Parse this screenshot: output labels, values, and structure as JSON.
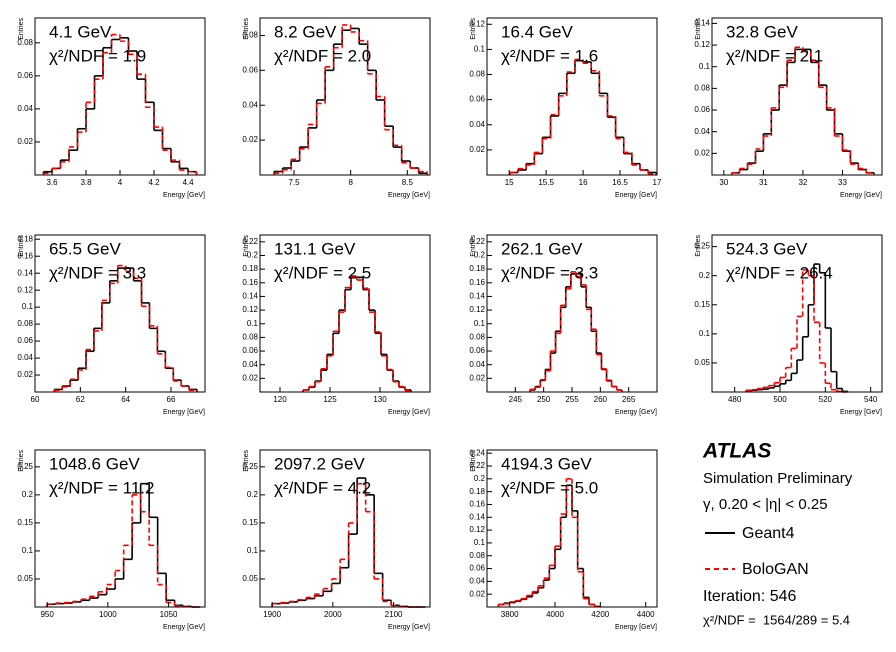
{
  "chart_data": [
    {
      "type": "histogram",
      "title": "4.1 GeV",
      "annotation": "χ²/NDF = 1.9",
      "xlabel": "Energy [GeV]",
      "ylabel": "Entries",
      "bins": [
        3.55,
        3.6,
        3.65,
        3.7,
        3.75,
        3.8,
        3.85,
        3.9,
        3.95,
        4,
        4.05,
        4.1,
        4.15,
        4.2,
        4.25,
        4.3,
        4.35,
        4.4,
        4.45
      ],
      "series": [
        {
          "name": "Geant4",
          "color": "#000000",
          "dashed": false,
          "values": [
            0.002,
            0.004,
            0.009,
            0.015,
            0.028,
            0.04,
            0.06,
            0.077,
            0.082,
            0.083,
            0.075,
            0.058,
            0.044,
            0.027,
            0.016,
            0.008,
            0.004,
            0.002
          ]
        },
        {
          "name": "BoloGAN",
          "color": "#ff0000",
          "dashed": true,
          "values": [
            0.001,
            0.004,
            0.008,
            0.017,
            0.026,
            0.044,
            0.058,
            0.074,
            0.085,
            0.081,
            0.073,
            0.061,
            0.041,
            0.029,
            0.015,
            0.009,
            0.003,
            0.002
          ]
        }
      ],
      "xlim": [
        3.5,
        4.5
      ],
      "xticks": [
        3.6,
        3.8,
        4,
        4.2,
        4.4
      ],
      "ylim": [
        0,
        0.095
      ],
      "yticks": [
        0.02,
        0.04,
        0.06,
        0.08
      ]
    },
    {
      "type": "histogram",
      "title": "8.2 GeV",
      "annotation": "χ²/NDF = 2.0",
      "xlabel": "Energy [GeV]",
      "ylabel": "Entries",
      "bins": [
        7.325,
        7.4,
        7.475,
        7.55,
        7.625,
        7.7,
        7.775,
        7.85,
        7.925,
        8,
        8.075,
        8.15,
        8.225,
        8.3,
        8.375,
        8.45,
        8.525,
        8.6,
        8.675
      ],
      "series": [
        {
          "color": "#000000",
          "dashed": false,
          "values": [
            0.002,
            0.004,
            0.008,
            0.016,
            0.027,
            0.043,
            0.06,
            0.075,
            0.083,
            0.084,
            0.075,
            0.06,
            0.043,
            0.028,
            0.016,
            0.008,
            0.004,
            0.001
          ]
        },
        {
          "color": "#ff0000",
          "dashed": true,
          "values": [
            0.001,
            0.003,
            0.009,
            0.015,
            0.029,
            0.041,
            0.062,
            0.073,
            0.086,
            0.082,
            0.077,
            0.058,
            0.045,
            0.026,
            0.017,
            0.007,
            0.004,
            0.002
          ]
        }
      ],
      "xlim": [
        7.2,
        8.7
      ],
      "xticks": [
        7.5,
        8,
        8.5
      ],
      "ylim": [
        0,
        0.09
      ],
      "yticks": [
        0.02,
        0.04,
        0.06,
        0.08
      ]
    },
    {
      "type": "histogram",
      "title": "16.4 GeV",
      "annotation": "χ²/NDF = 1.6",
      "xlabel": "Energy [GeV]",
      "ylabel": "Entries",
      "bins": [
        15.01,
        15.12,
        15.23,
        15.34,
        15.45,
        15.56,
        15.67,
        15.78,
        15.89,
        16,
        16.11,
        16.22,
        16.33,
        16.44,
        16.55,
        16.66,
        16.77,
        16.88,
        16.99
      ],
      "series": [
        {
          "color": "#000000",
          "dashed": false,
          "values": [
            0.002,
            0.004,
            0.009,
            0.017,
            0.03,
            0.047,
            0.065,
            0.081,
            0.091,
            0.09,
            0.081,
            0.065,
            0.046,
            0.03,
            0.017,
            0.009,
            0.004,
            0.002
          ]
        },
        {
          "color": "#ff0000",
          "dashed": true,
          "values": [
            0.002,
            0.005,
            0.008,
            0.018,
            0.029,
            0.048,
            0.063,
            0.082,
            0.092,
            0.089,
            0.083,
            0.063,
            0.047,
            0.029,
            0.018,
            0.008,
            0.004,
            0.001
          ]
        }
      ],
      "xlim": [
        14.7,
        17
      ],
      "xticks": [
        15,
        15.5,
        16,
        16.5,
        17
      ],
      "ylim": [
        0,
        0.125
      ],
      "yticks": [
        0.02,
        0.04,
        0.06,
        0.08,
        0.1,
        0.12
      ]
    },
    {
      "type": "histogram",
      "title": "32.8 GeV",
      "annotation": "χ²/NDF = 2.1",
      "xlabel": "Energy [GeV]",
      "ylabel": "Entries",
      "bins": [
        30.2,
        30.4,
        30.6,
        30.8,
        31,
        31.2,
        31.4,
        31.6,
        31.8,
        32,
        32.2,
        32.4,
        32.6,
        32.8,
        33,
        33.2,
        33.4,
        33.6,
        33.8
      ],
      "series": [
        {
          "color": "#000000",
          "dashed": false,
          "values": [
            0.002,
            0.005,
            0.011,
            0.022,
            0.038,
            0.06,
            0.083,
            0.104,
            0.116,
            0.116,
            0.104,
            0.083,
            0.06,
            0.038,
            0.022,
            0.011,
            0.005,
            0.002
          ]
        },
        {
          "color": "#ff0000",
          "dashed": true,
          "values": [
            0.002,
            0.006,
            0.01,
            0.024,
            0.036,
            0.062,
            0.081,
            0.106,
            0.118,
            0.114,
            0.106,
            0.081,
            0.062,
            0.036,
            0.023,
            0.01,
            0.006,
            0.002
          ]
        }
      ],
      "xlim": [
        29.7,
        34
      ],
      "xticks": [
        30,
        31,
        32,
        33
      ],
      "ylim": [
        0,
        0.145
      ],
      "yticks": [
        0.02,
        0.04,
        0.06,
        0.08,
        0.1,
        0.12,
        0.14
      ]
    },
    {
      "type": "histogram",
      "title": "65.5 GeV",
      "annotation": "χ²/NDF = 3.3",
      "xlabel": "Energy [GeV]",
      "ylabel": "Entries",
      "bins": [
        60.85,
        61.2,
        61.55,
        61.9,
        62.25,
        62.6,
        62.95,
        63.3,
        63.65,
        64,
        64.35,
        64.7,
        65.05,
        65.4,
        65.75,
        66.1,
        66.45,
        66.8,
        67.15
      ],
      "series": [
        {
          "color": "#000000",
          "dashed": false,
          "values": [
            0.003,
            0.007,
            0.014,
            0.028,
            0.048,
            0.075,
            0.105,
            0.131,
            0.146,
            0.146,
            0.131,
            0.105,
            0.075,
            0.048,
            0.028,
            0.014,
            0.007,
            0.003
          ]
        },
        {
          "color": "#ff0000",
          "dashed": true,
          "values": [
            0.002,
            0.006,
            0.015,
            0.026,
            0.05,
            0.072,
            0.108,
            0.128,
            0.149,
            0.142,
            0.134,
            0.101,
            0.078,
            0.045,
            0.029,
            0.013,
            0.007,
            0.002
          ]
        }
      ],
      "xlim": [
        60,
        67.5
      ],
      "xticks": [
        60,
        62,
        64,
        66
      ],
      "ylim": [
        0,
        0.185
      ],
      "yticks": [
        0.02,
        0.04,
        0.06,
        0.08,
        0.1,
        0.12,
        0.14,
        0.16,
        0.18
      ]
    },
    {
      "type": "histogram",
      "title": "131.1 GeV",
      "annotation": "χ²/NDF = 2.5",
      "xlabel": "Energy [GeV]",
      "ylabel": "Entries",
      "bins": [
        122.3,
        122.9,
        123.5,
        124.1,
        124.7,
        125.3,
        125.9,
        126.5,
        127.1,
        127.7,
        128.3,
        128.9,
        129.5,
        130.1,
        130.7,
        131.3,
        131.9,
        132.5,
        133.1
      ],
      "series": [
        {
          "color": "#000000",
          "dashed": false,
          "values": [
            0.003,
            0.007,
            0.016,
            0.032,
            0.055,
            0.086,
            0.12,
            0.15,
            0.168,
            0.168,
            0.15,
            0.12,
            0.086,
            0.055,
            0.032,
            0.016,
            0.007,
            0.003
          ]
        },
        {
          "color": "#ff0000",
          "dashed": true,
          "values": [
            0.003,
            0.008,
            0.015,
            0.034,
            0.053,
            0.089,
            0.117,
            0.153,
            0.17,
            0.164,
            0.152,
            0.117,
            0.088,
            0.053,
            0.033,
            0.015,
            0.008,
            0.002
          ]
        }
      ],
      "xlim": [
        118,
        135
      ],
      "xticks": [
        120,
        125,
        130
      ],
      "ylim": [
        0,
        0.23
      ],
      "yticks": [
        0.02,
        0.04,
        0.06,
        0.08,
        0.1,
        0.12,
        0.14,
        0.16,
        0.18,
        0.2,
        0.22
      ]
    },
    {
      "type": "histogram",
      "title": "262.1 GeV",
      "annotation": "χ²/NDF = 3.3",
      "xlabel": "Energy [GeV]",
      "ylabel": "Entries",
      "bins": [
        247.6,
        248.5,
        249.4,
        250.3,
        251.2,
        252.1,
        253,
        253.9,
        254.8,
        255.7,
        256.6,
        257.5,
        258.4,
        259.3,
        260.2,
        261.1,
        262,
        262.9,
        263.8
      ],
      "series": [
        {
          "color": "#000000",
          "dashed": false,
          "values": [
            0.003,
            0.008,
            0.017,
            0.033,
            0.057,
            0.089,
            0.124,
            0.154,
            0.173,
            0.173,
            0.154,
            0.124,
            0.089,
            0.057,
            0.033,
            0.017,
            0.008,
            0.003
          ]
        },
        {
          "color": "#ff0000",
          "dashed": true,
          "values": [
            0.004,
            0.007,
            0.018,
            0.031,
            0.06,
            0.086,
            0.127,
            0.151,
            0.176,
            0.169,
            0.157,
            0.121,
            0.092,
            0.055,
            0.034,
            0.016,
            0.008,
            0.003
          ]
        }
      ],
      "xlim": [
        240,
        270
      ],
      "xticks": [
        245,
        250,
        255,
        260,
        265
      ],
      "ylim": [
        0,
        0.23
      ],
      "yticks": [
        0.02,
        0.04,
        0.06,
        0.08,
        0.1,
        0.12,
        0.14,
        0.16,
        0.18,
        0.2,
        0.22
      ]
    },
    {
      "type": "histogram",
      "title": "524.3 GeV",
      "annotation": "χ²/NDF = 26.4",
      "xlabel": "Energy [GeV]",
      "ylabel": "Entries",
      "bins": [
        485,
        487.5,
        490,
        492.5,
        495,
        497.5,
        500,
        502.5,
        505,
        507.5,
        510,
        512.5,
        515,
        517.5,
        520,
        522.5,
        525,
        527.5,
        530
      ],
      "series": [
        {
          "color": "#000000",
          "dashed": false,
          "values": [
            0.002,
            0.003,
            0.004,
            0.005,
            0.007,
            0.01,
            0.014,
            0.02,
            0.032,
            0.055,
            0.095,
            0.15,
            0.22,
            0.205,
            0.11,
            0.035,
            0.006,
            0.001
          ]
        },
        {
          "color": "#ff0000",
          "dashed": true,
          "values": [
            0.003,
            0.004,
            0.006,
            0.008,
            0.011,
            0.016,
            0.025,
            0.042,
            0.075,
            0.13,
            0.21,
            0.2,
            0.12,
            0.05,
            0.015,
            0.004,
            0.001,
            0
          ]
        }
      ],
      "xlim": [
        470,
        545
      ],
      "xticks": [
        480,
        500,
        520,
        540
      ],
      "ylim": [
        0,
        0.27
      ],
      "yticks": [
        0.05,
        0.1,
        0.15,
        0.2,
        0.25
      ]
    },
    {
      "type": "histogram",
      "title": "1048.6 GeV",
      "annotation": "χ²/NDF = 11.2",
      "xlabel": "Energy [GeV]",
      "ylabel": "Entries",
      "bins": [
        950,
        957,
        964,
        971,
        978,
        985,
        992,
        999,
        1006,
        1013,
        1020,
        1027,
        1034,
        1041,
        1048,
        1055,
        1062,
        1069,
        1076
      ],
      "series": [
        {
          "color": "#000000",
          "dashed": false,
          "values": [
            0.005,
            0.006,
            0.007,
            0.009,
            0.012,
            0.016,
            0.022,
            0.032,
            0.05,
            0.085,
            0.15,
            0.22,
            0.16,
            0.06,
            0.012,
            0.003,
            0.001,
            0
          ]
        },
        {
          "color": "#ff0000",
          "dashed": true,
          "values": [
            0.005,
            0.007,
            0.008,
            0.01,
            0.014,
            0.019,
            0.027,
            0.04,
            0.065,
            0.11,
            0.2,
            0.17,
            0.11,
            0.04,
            0.008,
            0.002,
            0.001,
            0
          ]
        }
      ],
      "xlim": [
        940,
        1080
      ],
      "xticks": [
        950,
        1000,
        1050
      ],
      "ylim": [
        0,
        0.28
      ],
      "yticks": [
        0.05,
        0.1,
        0.15,
        0.2,
        0.25
      ]
    },
    {
      "type": "histogram",
      "title": "2097.2 GeV",
      "annotation": "χ²/NDF = 4.2",
      "xlabel": "Energy [GeV]",
      "ylabel": "Entries",
      "bins": [
        1900,
        1914,
        1928,
        1942,
        1956,
        1970,
        1984,
        1998,
        2012,
        2026,
        2040,
        2054,
        2068,
        2082,
        2096,
        2110,
        2124,
        2138,
        2152
      ],
      "series": [
        {
          "color": "#000000",
          "dashed": false,
          "values": [
            0.006,
            0.007,
            0.009,
            0.012,
            0.015,
            0.02,
            0.028,
            0.042,
            0.07,
            0.13,
            0.23,
            0.2,
            0.06,
            0.012,
            0.003,
            0.001,
            0,
            0
          ]
        },
        {
          "color": "#ff0000",
          "dashed": true,
          "values": [
            0.006,
            0.008,
            0.01,
            0.013,
            0.017,
            0.023,
            0.033,
            0.05,
            0.085,
            0.15,
            0.22,
            0.17,
            0.05,
            0.01,
            0.003,
            0.001,
            0,
            0
          ]
        }
      ],
      "xlim": [
        1880,
        2160
      ],
      "xticks": [
        1900,
        2000,
        2100
      ],
      "ylim": [
        0,
        0.28
      ],
      "yticks": [
        0.05,
        0.1,
        0.15,
        0.2,
        0.25
      ]
    },
    {
      "type": "histogram",
      "title": "4194.3 GeV",
      "annotation": "χ²/NDF = 5.0",
      "xlabel": "Energy [GeV]",
      "ylabel": "Entries",
      "bins": [
        3750,
        3775,
        3800,
        3825,
        3850,
        3875,
        3900,
        3925,
        3950,
        3975,
        4000,
        4025,
        4050,
        4075,
        4100,
        4125,
        4150,
        4175,
        4200
      ],
      "series": [
        {
          "color": "#000000",
          "dashed": false,
          "values": [
            0.004,
            0.006,
            0.007,
            0.009,
            0.012,
            0.016,
            0.022,
            0.03,
            0.042,
            0.06,
            0.09,
            0.14,
            0.19,
            0.15,
            0.06,
            0.015,
            0.004,
            0.001
          ]
        },
        {
          "color": "#ff0000",
          "dashed": true,
          "values": [
            0.004,
            0.005,
            0.008,
            0.01,
            0.013,
            0.018,
            0.024,
            0.033,
            0.045,
            0.065,
            0.095,
            0.145,
            0.2,
            0.14,
            0.055,
            0.013,
            0.004,
            0.001
          ]
        }
      ],
      "xlim": [
        3700,
        4450
      ],
      "xticks": [
        3800,
        4000,
        4200,
        4400
      ],
      "ylim": [
        0,
        0.245
      ],
      "yticks": [
        0.02,
        0.04,
        0.06,
        0.08,
        0.1,
        0.12,
        0.14,
        0.16,
        0.18,
        0.2,
        0.22,
        0.24
      ]
    }
  ],
  "info": {
    "experiment": "ATLAS",
    "label": "Simulation Preliminary",
    "selection": "γ, 0.20 < |η| < 0.25",
    "iteration": "Iteration: 546",
    "chi2": "χ²/NDF =  1564/289 = 5.4"
  }
}
